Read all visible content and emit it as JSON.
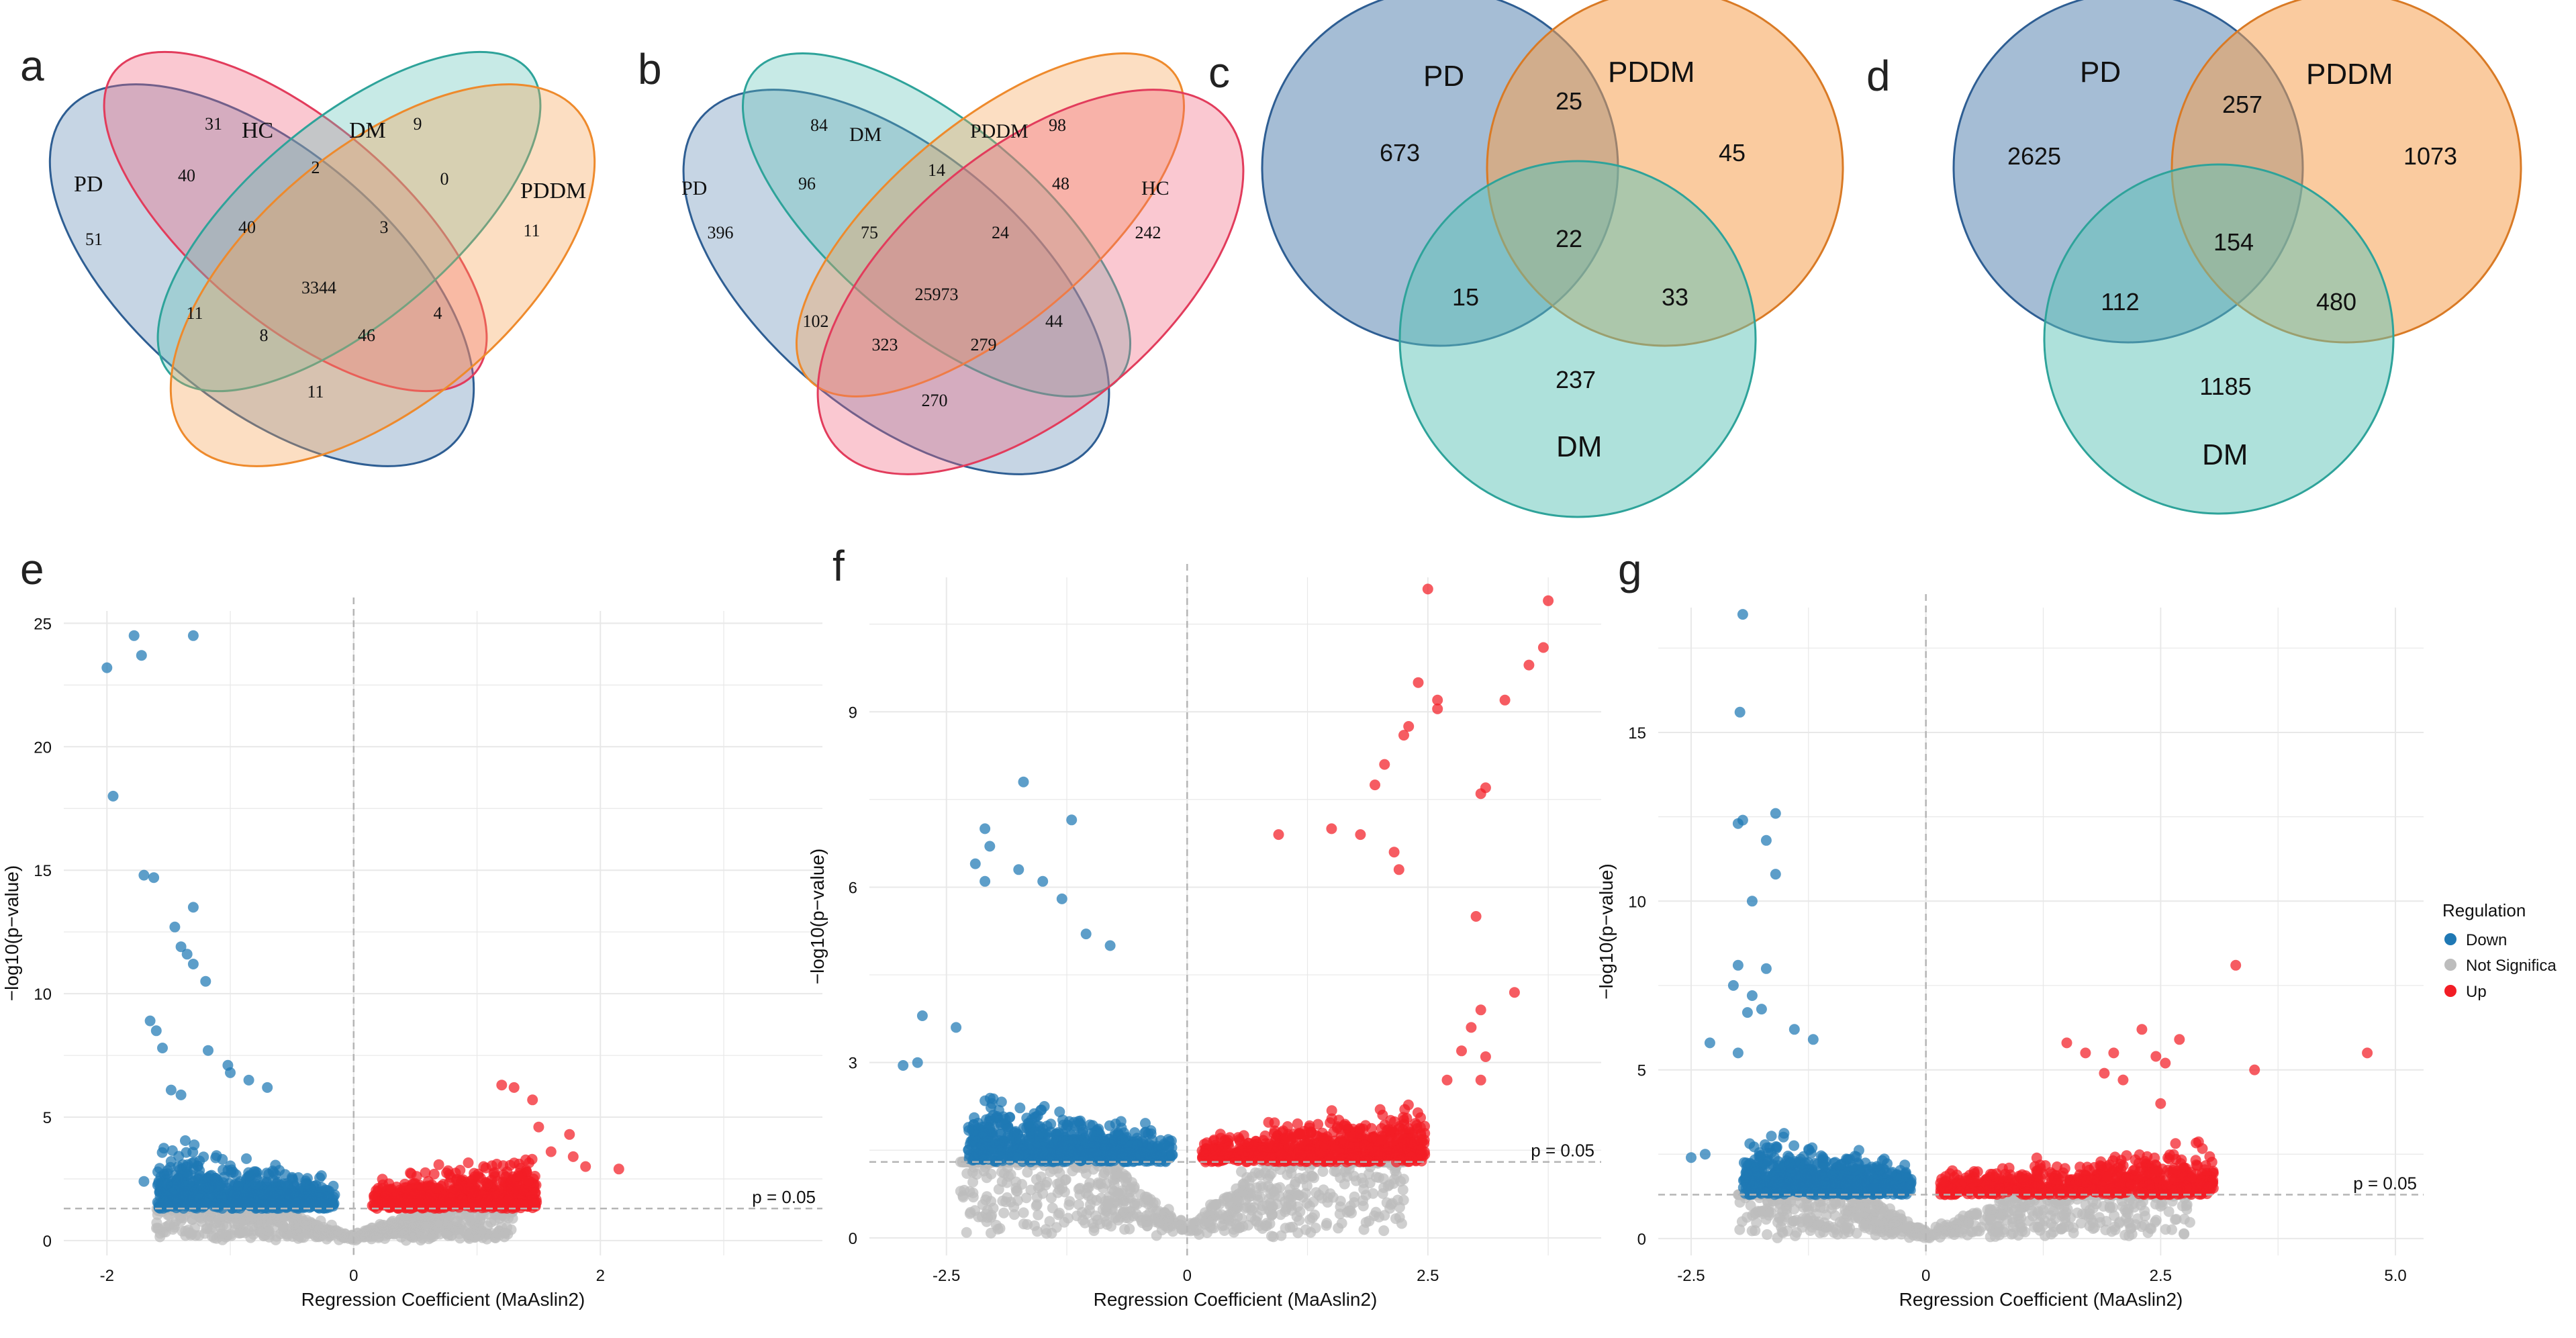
{
  "colors": {
    "pd": "#5b86b3",
    "hc": "#f0607a",
    "dm": "#5ec3b8",
    "pddm": "#f5a050",
    "pd_stroke": "#2e5e93",
    "hc_stroke": "#e23c5c",
    "dm_stroke": "#2ea39a",
    "pddm_stroke": "#ee8a2c",
    "down": "#1f78b4",
    "up": "#f21d25",
    "ns": "#bdbdbd",
    "grid": "#e8e8e8",
    "dash": "#b5b5b5",
    "axis_text": "#4d4d4d"
  },
  "panels": {
    "a": {
      "letter": "a",
      "labels": {
        "pd": "PD",
        "hc": "HC",
        "dm": "DM",
        "pddm": "PDDM"
      },
      "counts": {
        "pd_only": "51",
        "hc_only": "31",
        "dm_only": "9",
        "pddm_only": "11",
        "pd_hc": "40",
        "hc_dm": "2",
        "dm_pddm": "0",
        "pd_hc_dm": "40",
        "hc_dm_pddm": "3",
        "all": "3344",
        "pd_dm": "11",
        "hc_pddm": "4",
        "pd_dm_pddm": "8",
        "pd_hc_pddm": "46",
        "pd_pddm": "11"
      }
    },
    "b": {
      "letter": "b",
      "labels": {
        "pd": "PD",
        "dm": "DM",
        "pddm": "PDDM",
        "hc": "HC"
      },
      "counts": {
        "dm_only": "84",
        "pddm_only": "98",
        "pd_only": "396",
        "hc_only": "242",
        "pd_dm": "96",
        "dm_pddm": "14",
        "pddm_hc": "48",
        "pd_dm_pddm": "75",
        "dm_pddm_hc": "24",
        "all": "25973",
        "pd_pddm": "102",
        "dm_hc": "44",
        "pd_dm_pddm_hc_a": "323",
        "dm_pddm_hc_b": "279",
        "pd_hc": "270"
      }
    },
    "c": {
      "letter": "c",
      "labels": {
        "pd": "PD",
        "pddm": "PDDM",
        "dm": "DM"
      },
      "counts": {
        "pd_only": "673",
        "pd_pddm": "25",
        "pddm_only": "45",
        "all": "22",
        "pd_dm": "15",
        "pddm_dm": "33",
        "dm_only": "237"
      }
    },
    "d": {
      "letter": "d",
      "labels": {
        "pd": "PD",
        "pddm": "PDDM",
        "dm": "DM"
      },
      "counts": {
        "pd_only": "2625",
        "pd_pddm": "257",
        "pddm_only": "1073",
        "all": "154",
        "pd_dm": "112",
        "pddm_dm": "480",
        "dm_only": "1185"
      }
    }
  },
  "legend": {
    "title": "Regulation",
    "items": [
      {
        "label": "Down",
        "color": "#1f78b4"
      },
      {
        "label": "Not Significa",
        "color": "#bdbdbd"
      },
      {
        "label": "Up",
        "color": "#f21d25"
      }
    ]
  },
  "chart_data": [
    {
      "panel": "e",
      "type": "scatter",
      "title": "",
      "xlabel": "Regression Coefficient (MaAslin2)",
      "ylabel": "−log10(p−value)",
      "xlim": [
        -2.35,
        3.8
      ],
      "ylim": [
        -0.6,
        25.5
      ],
      "xticks": [
        -2,
        0,
        2
      ],
      "yticks": [
        0,
        5,
        10,
        15,
        20,
        25
      ],
      "threshold_y": 1.3,
      "threshold_label": "p = 0.05",
      "vline_x": 0,
      "series": [
        {
          "name": "Down",
          "points": [
            [
              -2.0,
              23.2
            ],
            [
              -1.78,
              24.5
            ],
            [
              -1.72,
              23.7
            ],
            [
              -1.3,
              24.5
            ],
            [
              -1.95,
              18.0
            ],
            [
              -1.7,
              14.8
            ],
            [
              -1.62,
              14.7
            ],
            [
              -1.3,
              13.5
            ],
            [
              -1.45,
              12.7
            ],
            [
              -1.4,
              11.9
            ],
            [
              -1.35,
              11.6
            ],
            [
              -1.3,
              11.2
            ],
            [
              -1.2,
              10.5
            ],
            [
              -1.65,
              8.9
            ],
            [
              -1.6,
              8.5
            ],
            [
              -1.55,
              7.8
            ],
            [
              -1.18,
              7.7
            ],
            [
              -1.02,
              7.1
            ],
            [
              -1.48,
              6.1
            ],
            [
              -1.4,
              5.9
            ],
            [
              -1.0,
              6.8
            ],
            [
              -0.85,
              6.5
            ],
            [
              -0.7,
              6.2
            ],
            [
              -1.7,
              2.4
            ],
            [
              -1.4,
              2.5
            ]
          ]
        },
        {
          "name": "Up",
          "points": [
            [
              1.2,
              6.3
            ],
            [
              1.3,
              6.2
            ],
            [
              1.45,
              5.7
            ],
            [
              1.75,
              4.3
            ],
            [
              1.78,
              3.4
            ],
            [
              1.88,
              3.0
            ],
            [
              2.15,
              2.9
            ],
            [
              1.6,
              3.6
            ],
            [
              1.5,
              4.6
            ]
          ]
        }
      ]
    },
    {
      "panel": "f",
      "type": "scatter",
      "title": "",
      "xlabel": "Regression Coefficient (MaAslin2)",
      "ylabel": "−log10(p−value)",
      "xlim": [
        -3.3,
        4.3
      ],
      "ylim": [
        -0.3,
        11.3
      ],
      "xticks": [
        -2.5,
        0,
        2.5
      ],
      "yticks": [
        0,
        3,
        6,
        9
      ],
      "threshold_y": 1.3,
      "threshold_label": "p = 0.05",
      "vline_x": 0,
      "series": [
        {
          "name": "Down",
          "points": [
            [
              -1.7,
              7.8
            ],
            [
              -1.2,
              7.15
            ],
            [
              -2.1,
              7.0
            ],
            [
              -2.05,
              6.7
            ],
            [
              -2.2,
              6.4
            ],
            [
              -2.1,
              6.1
            ],
            [
              -1.75,
              6.3
            ],
            [
              -1.5,
              6.1
            ],
            [
              -1.3,
              5.8
            ],
            [
              -1.05,
              5.2
            ],
            [
              -0.8,
              5.0
            ],
            [
              -2.75,
              3.8
            ],
            [
              -2.8,
              3.0
            ],
            [
              -2.95,
              2.95
            ],
            [
              -2.4,
              3.6
            ]
          ]
        },
        {
          "name": "Up",
          "points": [
            [
              2.5,
              11.1
            ],
            [
              3.75,
              10.9
            ],
            [
              3.7,
              10.1
            ],
            [
              3.55,
              9.8
            ],
            [
              2.4,
              9.5
            ],
            [
              2.6,
              9.2
            ],
            [
              2.6,
              9.05
            ],
            [
              3.3,
              9.2
            ],
            [
              2.3,
              8.75
            ],
            [
              2.25,
              8.6
            ],
            [
              3.1,
              7.7
            ],
            [
              3.05,
              7.6
            ],
            [
              2.05,
              8.1
            ],
            [
              1.95,
              7.75
            ],
            [
              2.15,
              6.6
            ],
            [
              1.8,
              6.9
            ],
            [
              1.5,
              7.0
            ],
            [
              0.95,
              6.9
            ],
            [
              2.2,
              6.3
            ],
            [
              3.0,
              5.5
            ],
            [
              3.4,
              4.2
            ],
            [
              3.05,
              3.9
            ],
            [
              2.85,
              3.2
            ],
            [
              3.1,
              3.1
            ],
            [
              3.05,
              2.7
            ],
            [
              2.7,
              2.7
            ],
            [
              2.95,
              3.6
            ]
          ]
        }
      ]
    },
    {
      "panel": "g",
      "type": "scatter",
      "title": "",
      "xlabel": "Regression Coefficient (MaAslin2)",
      "ylabel": "−log10(p−value)",
      "xlim": [
        -2.85,
        5.3
      ],
      "ylim": [
        -0.5,
        18.7
      ],
      "xticks": [
        -2.5,
        0,
        2.5,
        5.0
      ],
      "yticks": [
        0,
        5,
        10,
        15
      ],
      "threshold_y": 1.3,
      "threshold_label": "p = 0.05",
      "vline_x": 0,
      "series": [
        {
          "name": "Down",
          "points": [
            [
              -1.95,
              18.5
            ],
            [
              -1.98,
              15.6
            ],
            [
              -2.0,
              12.3
            ],
            [
              -1.95,
              12.4
            ],
            [
              -1.6,
              12.6
            ],
            [
              -1.7,
              11.8
            ],
            [
              -1.6,
              10.8
            ],
            [
              -1.85,
              10.0
            ],
            [
              -2.0,
              8.1
            ],
            [
              -1.7,
              8.0
            ],
            [
              -2.05,
              7.5
            ],
            [
              -1.85,
              7.2
            ],
            [
              -1.75,
              6.8
            ],
            [
              -1.9,
              6.7
            ],
            [
              -2.3,
              5.8
            ],
            [
              -2.0,
              5.5
            ],
            [
              -1.4,
              6.2
            ],
            [
              -1.2,
              5.9
            ],
            [
              -2.5,
              2.4
            ],
            [
              -2.35,
              2.5
            ]
          ]
        },
        {
          "name": "Up",
          "points": [
            [
              3.3,
              8.1
            ],
            [
              4.7,
              5.5
            ],
            [
              3.5,
              5.0
            ],
            [
              2.7,
              5.9
            ],
            [
              2.45,
              5.4
            ],
            [
              2.55,
              5.2
            ],
            [
              2.3,
              6.2
            ],
            [
              2.0,
              5.5
            ],
            [
              2.1,
              4.7
            ],
            [
              1.9,
              4.9
            ],
            [
              2.5,
              4.0
            ],
            [
              1.7,
              5.5
            ],
            [
              1.5,
              5.8
            ]
          ]
        }
      ]
    }
  ]
}
